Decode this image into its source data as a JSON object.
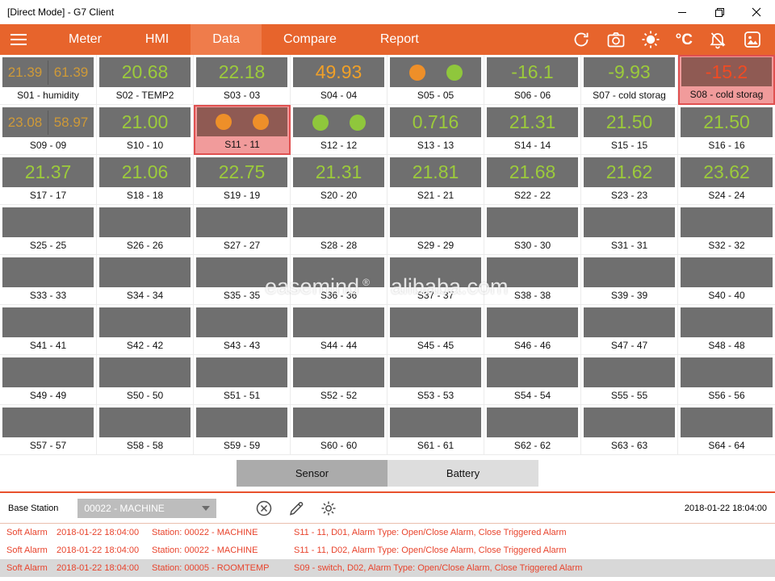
{
  "window": {
    "title": "[Direct Mode] - G7 Client"
  },
  "nav": {
    "tabs": [
      {
        "label": "Meter",
        "active": false
      },
      {
        "label": "HMI",
        "active": false
      },
      {
        "label": "Data",
        "active": true
      },
      {
        "label": "Compare",
        "active": false
      },
      {
        "label": "Report",
        "active": false
      }
    ],
    "temp_unit": "°C"
  },
  "grid": {
    "tiles": [
      {
        "label": "S01 - humidity",
        "type": "dual",
        "values": [
          "21.39",
          "61.39"
        ],
        "color": "amber"
      },
      {
        "label": "S02 - TEMP2",
        "type": "single",
        "values": [
          "20.68"
        ],
        "color": "green"
      },
      {
        "label": "S03 - 03",
        "type": "single",
        "values": [
          "22.18"
        ],
        "color": "green"
      },
      {
        "label": "S04 - 04",
        "type": "single",
        "values": [
          "49.93"
        ],
        "color": "orange"
      },
      {
        "label": "S05 - 05",
        "type": "circles",
        "circles": [
          "orange",
          "green"
        ]
      },
      {
        "label": "S06 - 06",
        "type": "single",
        "values": [
          "-16.1"
        ],
        "color": "green"
      },
      {
        "label": "S07 - cold storag",
        "type": "single",
        "values": [
          "-9.93"
        ],
        "color": "green"
      },
      {
        "label": "S08 - cold storag",
        "type": "single",
        "values": [
          "-15.2"
        ],
        "color": "red",
        "alarm": true
      },
      {
        "label": "S09 - 09",
        "type": "dual",
        "values": [
          "23.08",
          "58.97"
        ],
        "color": "amber"
      },
      {
        "label": "S10 - 10",
        "type": "single",
        "values": [
          "21.00"
        ],
        "color": "green"
      },
      {
        "label": "S11 - 11",
        "type": "circles",
        "circles": [
          "orange",
          "orange"
        ],
        "alarm": true
      },
      {
        "label": "S12 - 12",
        "type": "circles",
        "circles": [
          "green",
          "green"
        ]
      },
      {
        "label": "S13 - 13",
        "type": "single",
        "values": [
          "0.716"
        ],
        "color": "green"
      },
      {
        "label": "S14 - 14",
        "type": "single",
        "values": [
          "21.31"
        ],
        "color": "green"
      },
      {
        "label": "S15 - 15",
        "type": "single",
        "values": [
          "21.50"
        ],
        "color": "green"
      },
      {
        "label": "S16 - 16",
        "type": "single",
        "values": [
          "21.50"
        ],
        "color": "green"
      },
      {
        "label": "S17 - 17",
        "type": "single",
        "values": [
          "21.37"
        ],
        "color": "green"
      },
      {
        "label": "S18 - 18",
        "type": "single",
        "values": [
          "21.06"
        ],
        "color": "green"
      },
      {
        "label": "S19 - 19",
        "type": "single",
        "values": [
          "22.75"
        ],
        "color": "green"
      },
      {
        "label": "S20 - 20",
        "type": "single",
        "values": [
          "21.31"
        ],
        "color": "green"
      },
      {
        "label": "S21 - 21",
        "type": "single",
        "values": [
          "21.81"
        ],
        "color": "green"
      },
      {
        "label": "S22 - 22",
        "type": "single",
        "values": [
          "21.68"
        ],
        "color": "green"
      },
      {
        "label": "S23 - 23",
        "type": "single",
        "values": [
          "21.62"
        ],
        "color": "green"
      },
      {
        "label": "S24 - 24",
        "type": "single",
        "values": [
          "23.62"
        ],
        "color": "green"
      },
      {
        "label": "S25 - 25",
        "type": "empty"
      },
      {
        "label": "S26 - 26",
        "type": "empty"
      },
      {
        "label": "S27 - 27",
        "type": "empty"
      },
      {
        "label": "S28 - 28",
        "type": "empty"
      },
      {
        "label": "S29 - 29",
        "type": "empty"
      },
      {
        "label": "S30 - 30",
        "type": "empty"
      },
      {
        "label": "S31 - 31",
        "type": "empty"
      },
      {
        "label": "S32 - 32",
        "type": "empty"
      },
      {
        "label": "S33 - 33",
        "type": "empty"
      },
      {
        "label": "S34 - 34",
        "type": "empty"
      },
      {
        "label": "S35 - 35",
        "type": "empty"
      },
      {
        "label": "S36 - 36",
        "type": "empty"
      },
      {
        "label": "S37 - 37",
        "type": "empty"
      },
      {
        "label": "S38 - 38",
        "type": "empty"
      },
      {
        "label": "S39 - 39",
        "type": "empty"
      },
      {
        "label": "S40 - 40",
        "type": "empty"
      },
      {
        "label": "S41 - 41",
        "type": "empty"
      },
      {
        "label": "S42 - 42",
        "type": "empty"
      },
      {
        "label": "S43 - 43",
        "type": "empty"
      },
      {
        "label": "S44 - 44",
        "type": "empty"
      },
      {
        "label": "S45 - 45",
        "type": "empty"
      },
      {
        "label": "S46 - 46",
        "type": "empty"
      },
      {
        "label": "S47 - 47",
        "type": "empty"
      },
      {
        "label": "S48 - 48",
        "type": "empty"
      },
      {
        "label": "S49 - 49",
        "type": "empty"
      },
      {
        "label": "S50 - 50",
        "type": "empty"
      },
      {
        "label": "S51 - 51",
        "type": "empty"
      },
      {
        "label": "S52 - 52",
        "type": "empty"
      },
      {
        "label": "S53 - 53",
        "type": "empty"
      },
      {
        "label": "S54 - 54",
        "type": "empty"
      },
      {
        "label": "S55 - 55",
        "type": "empty"
      },
      {
        "label": "S56 - 56",
        "type": "empty"
      },
      {
        "label": "S57 - 57",
        "type": "empty"
      },
      {
        "label": "S58 - 58",
        "type": "empty"
      },
      {
        "label": "S59 - 59",
        "type": "empty"
      },
      {
        "label": "S60 - 60",
        "type": "empty"
      },
      {
        "label": "S61 - 61",
        "type": "empty"
      },
      {
        "label": "S62 - 62",
        "type": "empty"
      },
      {
        "label": "S63 - 63",
        "type": "empty"
      },
      {
        "label": "S64 - 64",
        "type": "empty"
      }
    ]
  },
  "watermark": {
    "brand": "easemind",
    "reg": "®",
    "site": "alibaba.com"
  },
  "toggles": {
    "sensor": "Sensor",
    "battery": "Battery"
  },
  "base": {
    "label": "Base Station",
    "station": "00022 - MACHINE",
    "timestamp": "2018-01-22 18:04:00"
  },
  "alarms": {
    "rows": [
      {
        "type": "Soft Alarm",
        "time": "2018-01-22 18:04:00",
        "station": "Station: 00022 - MACHINE",
        "detail": "S11 - 11, D01, Alarm Type: Open/Close Alarm, Close Triggered Alarm",
        "highlighted": false
      },
      {
        "type": "Soft Alarm",
        "time": "2018-01-22 18:04:00",
        "station": "Station: 00022 - MACHINE",
        "detail": "S11 - 11, D02, Alarm Type: Open/Close Alarm, Close Triggered Alarm",
        "highlighted": false
      },
      {
        "type": "Soft Alarm",
        "time": "2018-01-22 18:04:00",
        "station": "Station: 00005 - ROOMTEMP",
        "detail": "S09 - switch, D02, Alarm Type: Open/Close Alarm, Close Triggered Alarm",
        "highlighted": true
      }
    ]
  }
}
